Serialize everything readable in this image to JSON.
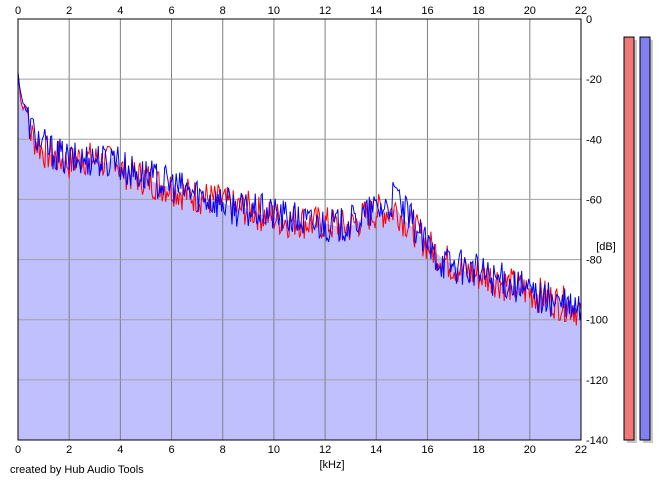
{
  "chart_data": {
    "type": "area",
    "title": "",
    "xlabel": "[kHz]",
    "ylabel": "[dB]",
    "xlim": [
      0,
      22
    ],
    "ylim": [
      -140,
      0
    ],
    "x_ticks": [
      "0",
      "2",
      "4",
      "6",
      "8",
      "10",
      "12",
      "14",
      "16",
      "18",
      "20",
      "22"
    ],
    "y_ticks": [
      "0",
      "-20",
      "-40",
      "-60",
      "-80",
      "-100",
      "-120",
      "-140"
    ],
    "grid": true,
    "legend": "none",
    "x": [
      0,
      0.1,
      0.2,
      0.3,
      0.5,
      0.8,
      1,
      1.5,
      2,
      2.5,
      3,
      3.5,
      3.8,
      4,
      4.5,
      5,
      5.5,
      6,
      6.5,
      7,
      7.5,
      8,
      8.5,
      9,
      9.5,
      10,
      10.5,
      11,
      11.5,
      12,
      12.5,
      13,
      13.5,
      14,
      14.5,
      14.8,
      15,
      15.5,
      16,
      16.5,
      17,
      17.5,
      18,
      18.5,
      19,
      19.5,
      20,
      20.5,
      21,
      21.5,
      22
    ],
    "series": [
      {
        "color": "#ff0000",
        "values": [
          -18,
          -26,
          -30,
          -28,
          -38,
          -42,
          -44,
          -46,
          -48,
          -46,
          -47,
          -48,
          -45,
          -50,
          -52,
          -53,
          -55,
          -56,
          -58,
          -59,
          -60,
          -61,
          -63,
          -63,
          -65,
          -66,
          -67,
          -67,
          -68,
          -68,
          -69,
          -69,
          -66,
          -64,
          -64,
          -63,
          -66,
          -70,
          -75,
          -79,
          -82,
          -84,
          -85,
          -86,
          -88,
          -89,
          -91,
          -92,
          -94,
          -95,
          -97
        ]
      },
      {
        "color": "#0000ff",
        "values": [
          -18,
          -24,
          -28,
          -30,
          -36,
          -40,
          -42,
          -45,
          -47,
          -47,
          -46,
          -48,
          -44,
          -49,
          -51,
          -52,
          -54,
          -55,
          -57,
          -58,
          -60,
          -61,
          -63,
          -64,
          -64,
          -65,
          -66,
          -67,
          -68,
          -68,
          -69,
          -68,
          -66,
          -63,
          -62,
          -58,
          -63,
          -69,
          -76,
          -80,
          -82,
          -83,
          -84,
          -86,
          -87,
          -89,
          -91,
          -93,
          -94,
          -96,
          -97
        ]
      }
    ],
    "fill_color": "#c0c0ff",
    "level_meters": [
      {
        "color": "#f07878",
        "level_db": -6
      },
      {
        "color": "#8080f0",
        "level_db": -6
      }
    ]
  },
  "footer": {
    "credit": "created by Hub Audio Tools"
  }
}
